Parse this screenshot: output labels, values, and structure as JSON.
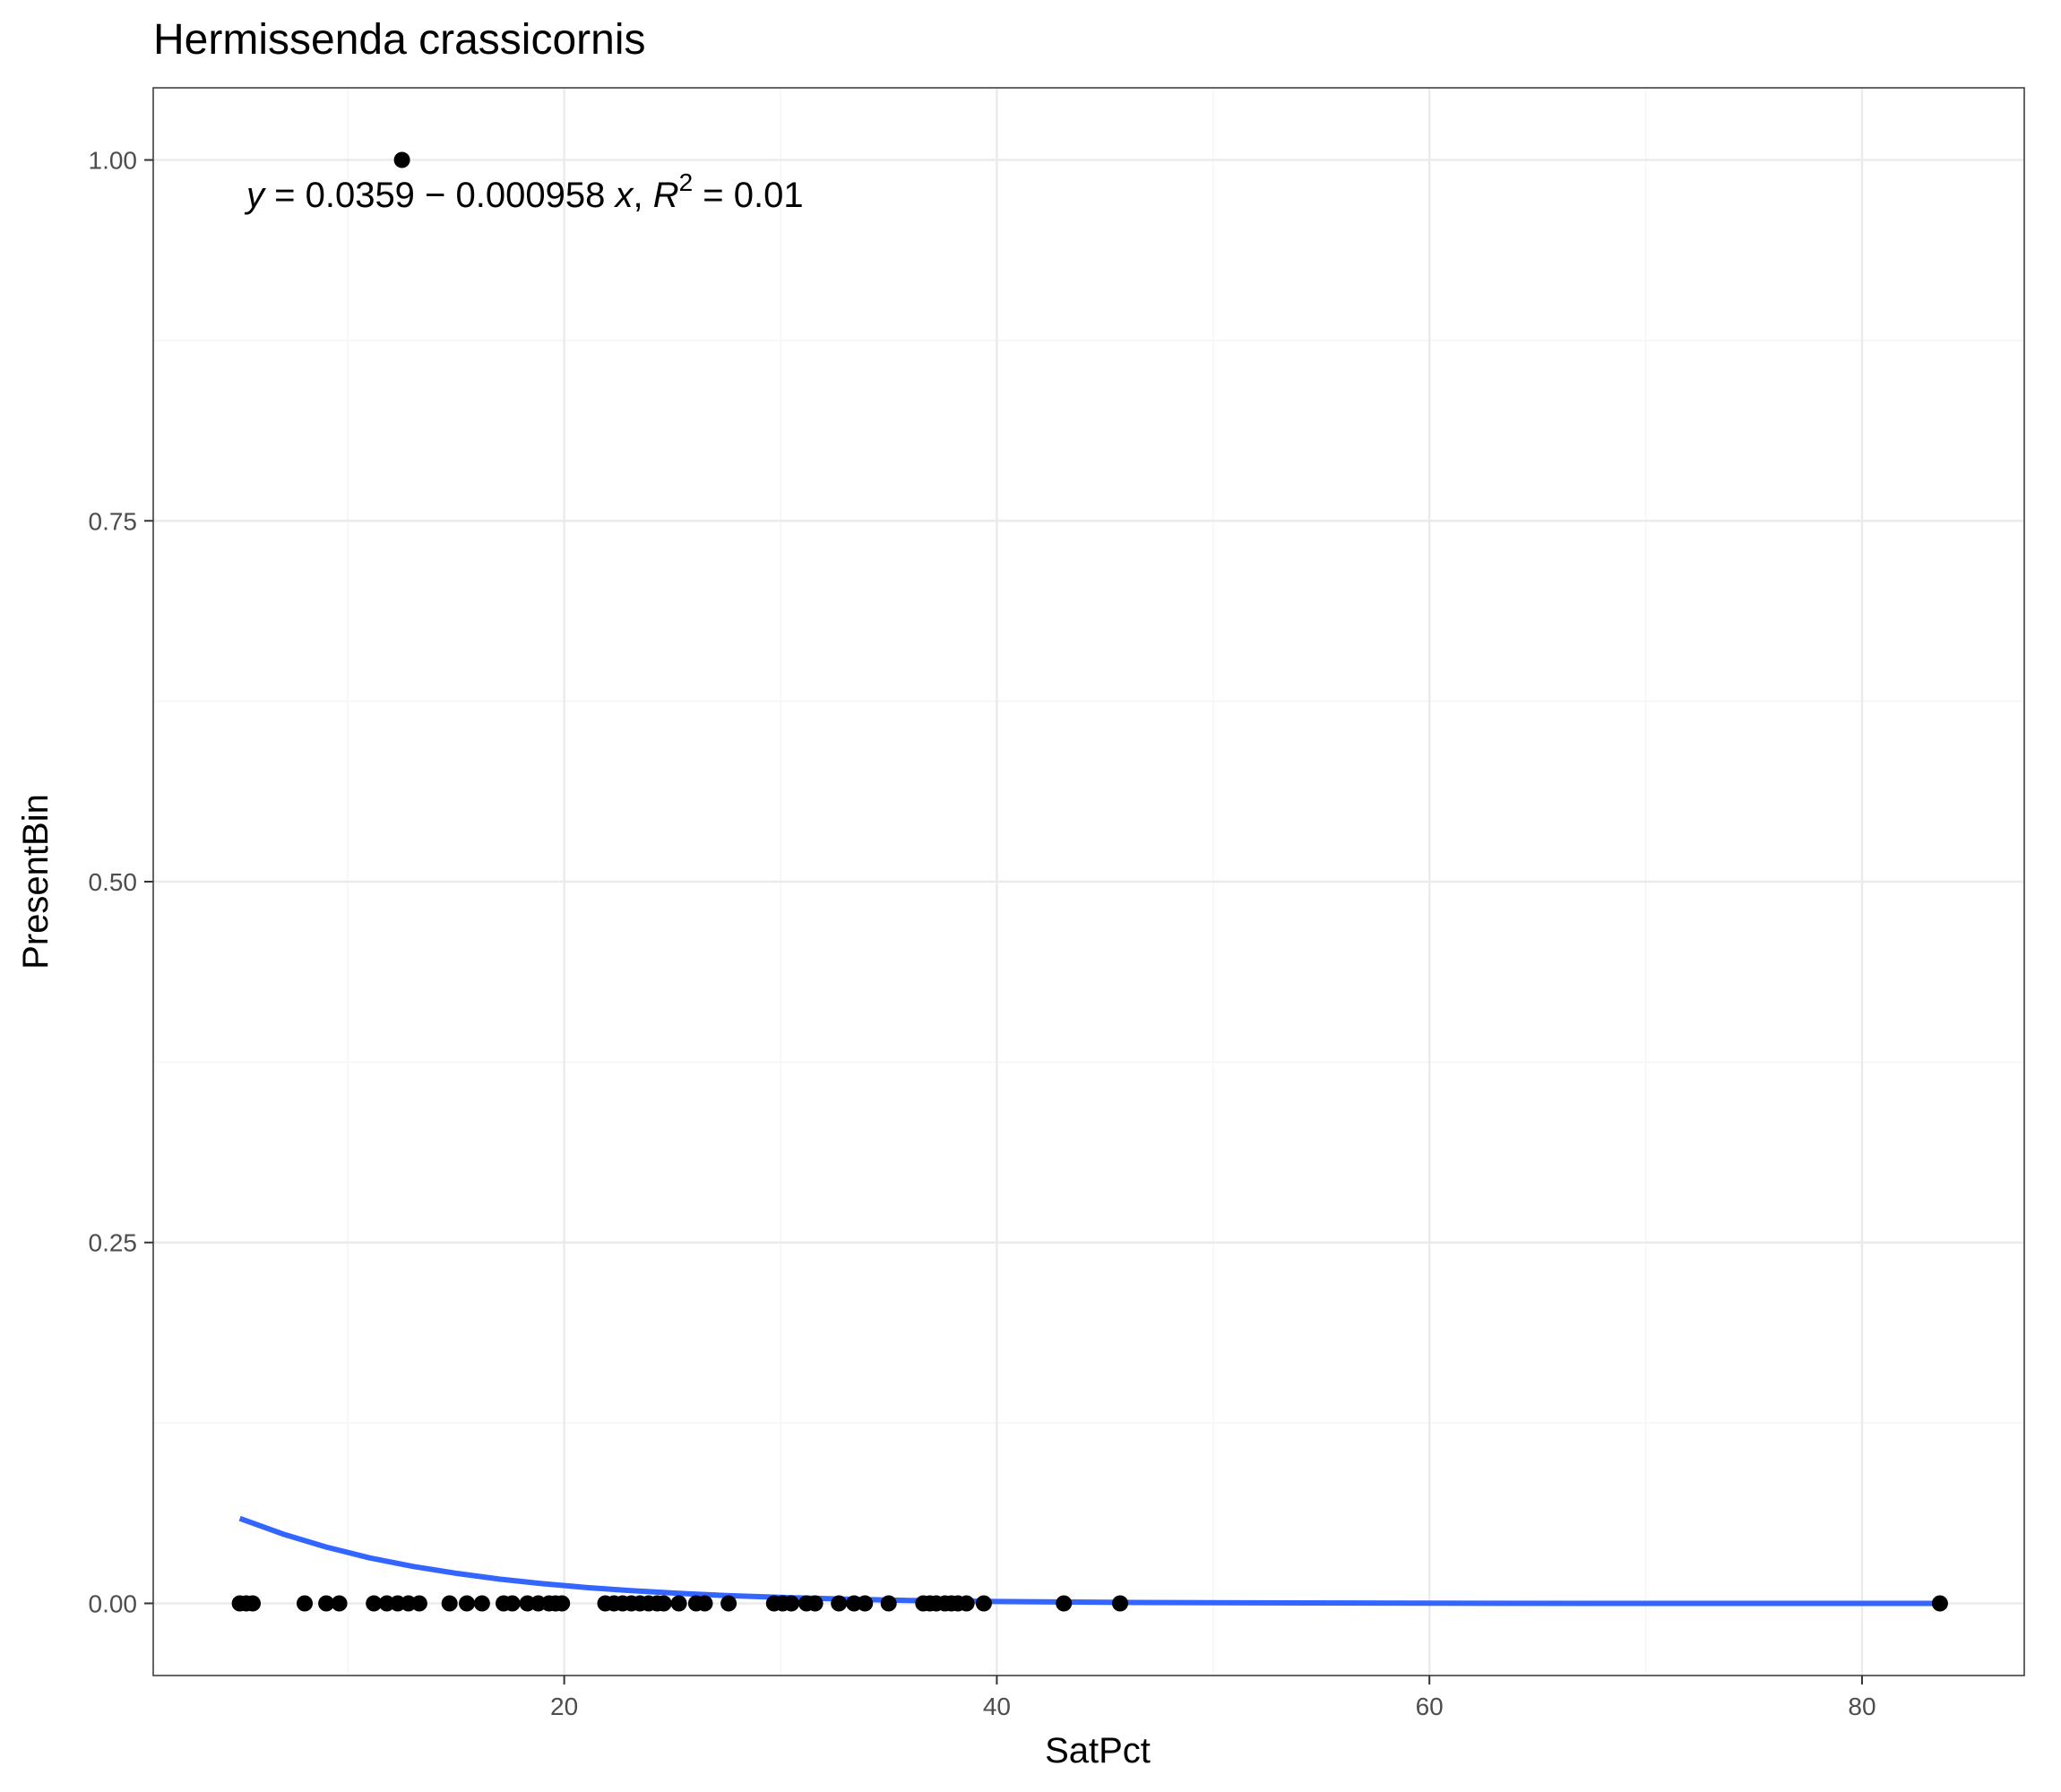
{
  "chart_data": {
    "type": "scatter",
    "title": "Hermissenda crassicornis",
    "xlabel": "SatPct",
    "ylabel": "PresentBin",
    "xlim": [
      1.0,
      87.5
    ],
    "ylim": [
      -0.05,
      1.05
    ],
    "x_ticks": [
      20,
      40,
      60,
      80
    ],
    "x_tick_labels": [
      "20",
      "40",
      "60",
      "80"
    ],
    "y_ticks": [
      0.0,
      0.25,
      0.5,
      0.75,
      1.0
    ],
    "y_tick_labels": [
      "0.00",
      "0.25",
      "0.50",
      "0.75",
      "1.00"
    ],
    "grid": true,
    "annotation": {
      "y_var": "y",
      "equals1": " = 0.0359 − 0.000958 ",
      "x_var": "x",
      "comma": ",  ",
      "r_var": "R",
      "r_exp": "2",
      "equals2": " = 0.01"
    },
    "points": {
      "x": [
        5.0,
        5.3,
        5.6,
        8.0,
        9.0,
        9.6,
        11.2,
        11.8,
        12.3,
        12.8,
        13.3,
        14.7,
        15.5,
        16.2,
        17.2,
        17.6,
        18.3,
        18.8,
        19.3,
        19.6,
        19.9,
        21.9,
        22.3,
        22.7,
        23.1,
        23.5,
        23.9,
        24.3,
        24.6,
        25.3,
        26.1,
        26.5,
        27.6,
        29.7,
        30.1,
        30.5,
        31.2,
        31.6,
        32.7,
        33.4,
        33.9,
        35.0,
        36.6,
        36.9,
        37.2,
        37.6,
        37.9,
        38.2,
        38.6,
        39.4,
        43.1,
        45.7,
        83.6,
        12.5
      ],
      "y": [
        0,
        0,
        0,
        0,
        0,
        0,
        0,
        0,
        0,
        0,
        0,
        0,
        0,
        0,
        0,
        0,
        0,
        0,
        0,
        0,
        0,
        0,
        0,
        0,
        0,
        0,
        0,
        0,
        0,
        0,
        0,
        0,
        0,
        0,
        0,
        0,
        0,
        0,
        0,
        0,
        0,
        0,
        0,
        0,
        0,
        0,
        0,
        0,
        0,
        0,
        0,
        0,
        0,
        1
      ]
    },
    "fit_line": {
      "x": [
        5.0,
        7.0,
        9.0,
        11.0,
        13.0,
        15.0,
        17.0,
        19.0,
        21.0,
        23.0,
        25.0,
        27.5,
        30.0,
        33.0,
        36.0,
        40.0,
        45.0,
        50.0,
        60.0,
        70.0,
        83.6
      ],
      "y": [
        0.0588,
        0.048,
        0.039,
        0.0315,
        0.0256,
        0.0208,
        0.0168,
        0.0136,
        0.011,
        0.0089,
        0.0072,
        0.0054,
        0.0041,
        0.0029,
        0.002,
        0.0013,
        0.0007,
        0.0004,
        0.0001,
        0.0,
        0.0
      ]
    },
    "colors": {
      "panel_border": "#333333",
      "grid_major": "#ebebeb",
      "grid_minor": "#f5f5f5",
      "tick": "#333333",
      "point": "#000000",
      "fit_line": "#3366ff"
    }
  }
}
